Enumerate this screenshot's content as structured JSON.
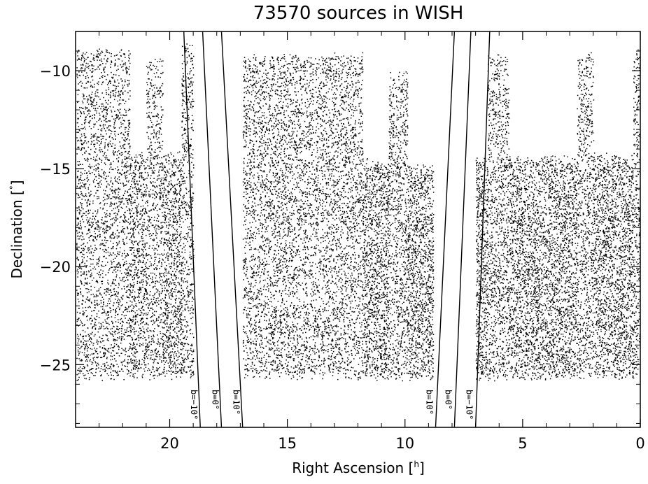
{
  "chart_data": {
    "type": "scatter",
    "title": "73570 sources in WISH",
    "xlabel": "Right Ascension [",
    "xlabel_unit": "h",
    "xlabel_close": "]",
    "ylabel": "Declination [",
    "ylabel_unit": "°",
    "ylabel_close": "]",
    "xlim": [
      24,
      0
    ],
    "ylim": [
      -28.2,
      -8.0
    ],
    "x_ticks": [
      20,
      15,
      10,
      5,
      0
    ],
    "x_tick_labels": [
      "20",
      "15",
      "10",
      "5",
      "0"
    ],
    "y_ticks": [
      -10,
      -15,
      -20,
      -25
    ],
    "y_tick_labels": [
      "−10",
      "−15",
      "−20",
      "−25"
    ],
    "grid": false,
    "point_color": "#000000",
    "n_sources": 73570,
    "coverage": {
      "dec_lower_limit": -25.6,
      "dec_upper_base": -14.5,
      "dec_upper_fingers": -9.1,
      "bands": [
        {
          "ra_min": 0.0,
          "ra_max": 0.3,
          "dec_max": -9.1
        },
        {
          "ra_min": 0.3,
          "ra_max": 2.0,
          "dec_max": -14.3
        },
        {
          "ra_min": 2.0,
          "ra_max": 2.7,
          "dec_max": -9.1
        },
        {
          "ra_min": 2.7,
          "ra_max": 5.6,
          "dec_max": -14.5
        },
        {
          "ra_min": 5.6,
          "ra_max": 6.5,
          "dec_max": -9.3
        },
        {
          "ra_min": 6.5,
          "ra_max": 7.0,
          "dec_max": -14.5
        },
        {
          "ra_min": 8.8,
          "ra_max": 9.9,
          "dec_max": -14.9
        },
        {
          "ra_min": 9.9,
          "ra_max": 10.7,
          "dec_max": -10.2
        },
        {
          "ra_min": 10.7,
          "ra_max": 11.8,
          "dec_max": -14.7
        },
        {
          "ra_min": 11.8,
          "ra_max": 16.9,
          "dec_max": -9.3
        },
        {
          "ra_min": 19.0,
          "ra_max": 19.5,
          "dec_max": -8.7
        },
        {
          "ra_min": 19.5,
          "ra_max": 20.3,
          "dec_max": -14.3
        },
        {
          "ra_min": 20.3,
          "ra_max": 21.0,
          "dec_max": -9.5
        },
        {
          "ra_min": 21.0,
          "ra_max": 21.7,
          "dec_max": -14.3
        },
        {
          "ra_min": 21.7,
          "ra_max": 24.0,
          "dec_max": -9.0
        }
      ]
    },
    "galactic_lines": [
      {
        "label": "b=−10°",
        "ra_top": 19.4,
        "ra_bottom": 18.7
      },
      {
        "label": "b=0°",
        "ra_top": 18.6,
        "ra_bottom": 17.8
      },
      {
        "label": "b=10°",
        "ra_top": 17.8,
        "ra_bottom": 16.9
      },
      {
        "label": "b=10°",
        "ra_top": 7.9,
        "ra_bottom": 8.7
      },
      {
        "label": "b=0°",
        "ra_top": 7.2,
        "ra_bottom": 7.9
      },
      {
        "label": "b=−10°",
        "ra_top": 6.4,
        "ra_bottom": 7.0
      }
    ],
    "exclusion_zones": [
      {
        "ra_min": 17.0,
        "ra_max": 19.0
      },
      {
        "ra_min": 7.0,
        "ra_max": 8.8
      }
    ]
  }
}
